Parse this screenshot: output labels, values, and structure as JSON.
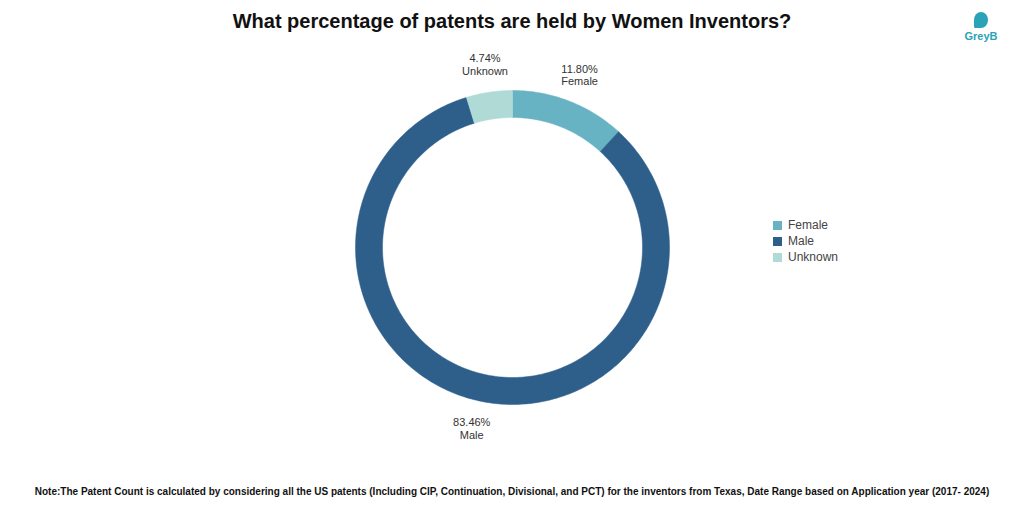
{
  "chart_data": {
    "type": "donut",
    "title": "What percentage of patents are held by Women Inventors?",
    "categories": [
      "Female",
      "Male",
      "Unknown"
    ],
    "values": [
      11.8,
      83.46,
      4.74
    ],
    "value_labels": [
      "11.80%",
      "83.46%",
      "4.74%"
    ],
    "colors": [
      "#67b3c3",
      "#2d5f8a",
      "#afdad6"
    ],
    "data_labels": true,
    "legend": "right",
    "note": "Note:The Patent Count is calculated by considering all the US patents (Including CIP, Continuation, Divisional, and PCT) for the inventors from Texas, Date Range based on Application year (2017- 2024)",
    "source": "GreyB"
  }
}
